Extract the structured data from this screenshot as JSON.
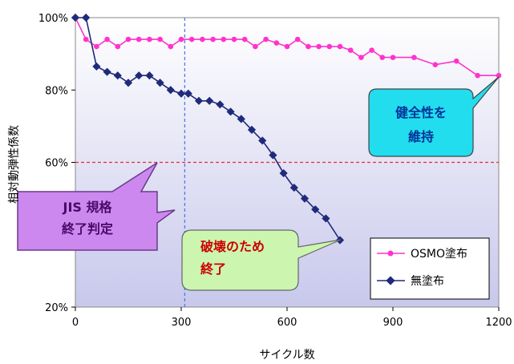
{
  "chart_data": {
    "type": "line",
    "title": "",
    "xlabel": "サイクル数",
    "ylabel": "相対動弾性係数",
    "xlim": [
      0,
      1200
    ],
    "ylim": [
      20,
      100
    ],
    "xticks": [
      0,
      300,
      600,
      900,
      1200
    ],
    "yticks": [
      {
        "value": 20,
        "label": "20%"
      },
      {
        "value": 40,
        "label": "40%"
      },
      {
        "value": 60,
        "label": "60%"
      },
      {
        "value": 80,
        "label": "80%"
      },
      {
        "value": 100,
        "label": "100%"
      }
    ],
    "legend_position": "bottom-right",
    "reference_lines": [
      {
        "axis": "y",
        "value": 60,
        "style": "dashed",
        "color": "#e03030"
      },
      {
        "axis": "x",
        "value": 310,
        "style": "dashed",
        "color": "#4a7fe0"
      }
    ],
    "series": [
      {
        "name": "OSMO塗布",
        "color": "#ff33cc",
        "marker": "circle",
        "x": [
          0,
          30,
          60,
          90,
          120,
          150,
          180,
          210,
          240,
          270,
          300,
          330,
          360,
          390,
          420,
          450,
          480,
          510,
          540,
          570,
          600,
          630,
          660,
          690,
          720,
          750,
          780,
          810,
          840,
          870,
          900,
          960,
          1020,
          1080,
          1140,
          1200
        ],
        "y": [
          100,
          94,
          92,
          94,
          92,
          94,
          94,
          94,
          94,
          92,
          94,
          94,
          94,
          94,
          94,
          94,
          94,
          92,
          94,
          93,
          92,
          94,
          92,
          92,
          92,
          92,
          91,
          89,
          91,
          89,
          89,
          89,
          87,
          88,
          84,
          84
        ]
      },
      {
        "name": "無塗布",
        "color": "#1f2a7a",
        "marker": "diamond",
        "x": [
          0,
          30,
          60,
          90,
          120,
          150,
          180,
          210,
          240,
          270,
          300,
          320,
          350,
          380,
          410,
          440,
          470,
          500,
          530,
          560,
          590,
          620,
          650,
          680,
          710,
          750
        ],
        "y": [
          100,
          100,
          86.5,
          85,
          84,
          82,
          84,
          84,
          82,
          80,
          79,
          79,
          77,
          77,
          76,
          74,
          72,
          69,
          66,
          62,
          57,
          53,
          50,
          47,
          44.5,
          38.5
        ]
      }
    ],
    "annotations": [
      {
        "id": "jis",
        "text": [
          "JIS 規格",
          "終了判定"
        ],
        "fill": "#cc88ee",
        "text_color": "#4a0a6a"
      },
      {
        "id": "destroy",
        "text": [
          "破壊のため",
          "終了"
        ],
        "fill": "#ccf5b0",
        "text_color": "#cc0000"
      },
      {
        "id": "integrity",
        "text": [
          "健全性を",
          "維持"
        ],
        "fill": "#22ddee",
        "text_color": "#003399"
      }
    ]
  }
}
